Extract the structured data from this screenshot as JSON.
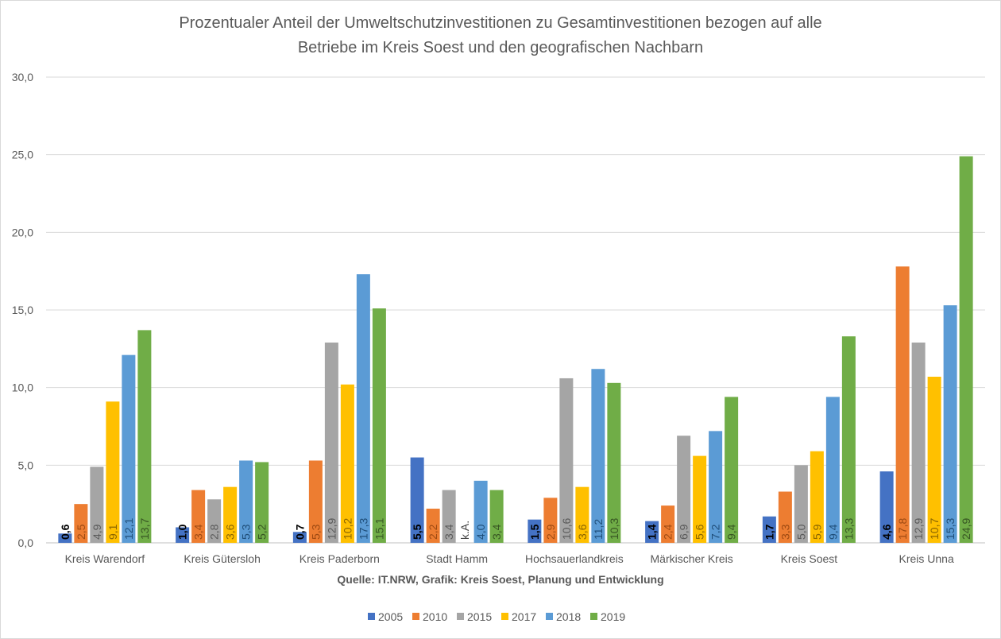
{
  "chart_data": {
    "type": "bar",
    "title_lines": [
      "Prozentualer Anteil der Umweltschutzinvestitionen zu Gesamtinvestitionen bezogen auf alle",
      "Betriebe im Kreis Soest und den geografischen Nachbarn"
    ],
    "xlabel": "Quelle: IT.NRW, Grafik: Kreis Soest, Planung und Entwicklung",
    "ylabel": "",
    "ylim": [
      0,
      30
    ],
    "yticks": [
      "0,0",
      "5,0",
      "10,0",
      "15,0",
      "20,0",
      "25,0",
      "30,0"
    ],
    "grid": true,
    "legend_position": "bottom",
    "categories": [
      "Kreis Warendorf",
      "Kreis Gütersloh",
      "Kreis Paderborn",
      "Stadt Hamm",
      "Hochsauerlandkreis",
      "Märkischer Kreis",
      "Kreis Soest",
      "Kreis Unna"
    ],
    "missing_label": "k.A.",
    "series": [
      {
        "name": "2005",
        "color": "#4472c4",
        "label_color": "#000000",
        "values": [
          0.6,
          1.0,
          0.7,
          5.5,
          1.5,
          1.4,
          1.7,
          4.6
        ]
      },
      {
        "name": "2010",
        "color": "#ed7d31",
        "label_color": "#9e4a12",
        "values": [
          2.5,
          3.4,
          5.3,
          2.2,
          2.9,
          2.4,
          3.3,
          17.8
        ]
      },
      {
        "name": "2015",
        "color": "#a5a5a5",
        "label_color": "#5a5a5a",
        "values": [
          4.9,
          2.8,
          12.9,
          3.4,
          10.6,
          6.9,
          5.0,
          12.9
        ]
      },
      {
        "name": "2017",
        "color": "#ffc000",
        "label_color": "#8a6500",
        "values": [
          9.1,
          3.6,
          10.2,
          null,
          3.6,
          5.6,
          5.9,
          10.7
        ]
      },
      {
        "name": "2018",
        "color": "#5b9bd5",
        "label_color": "#1f4e79",
        "values": [
          12.1,
          5.3,
          17.3,
          4.0,
          11.2,
          7.2,
          9.4,
          15.3
        ]
      },
      {
        "name": "2019",
        "color": "#70ad47",
        "label_color": "#375623",
        "values": [
          13.7,
          5.2,
          15.1,
          3.4,
          10.3,
          9.4,
          13.3,
          24.9
        ]
      }
    ]
  }
}
